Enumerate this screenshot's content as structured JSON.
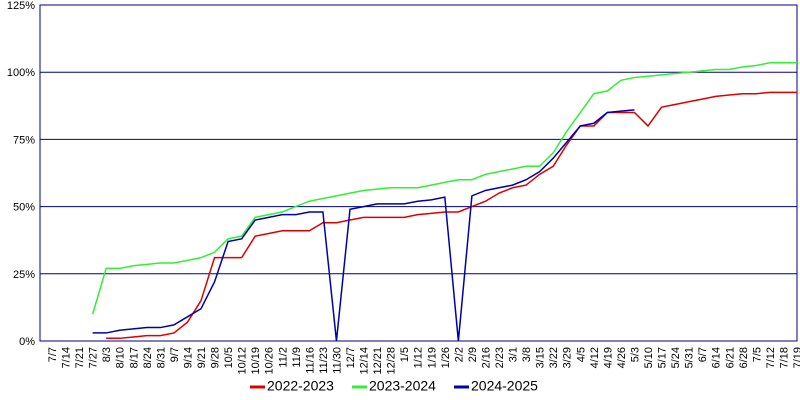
{
  "chart_data": {
    "type": "line",
    "categories": [
      "7/7",
      "7/14",
      "7/21",
      "7/27",
      "8/3",
      "8/10",
      "8/17",
      "8/24",
      "8/31",
      "9/7",
      "9/14",
      "9/21",
      "9/28",
      "10/5",
      "10/12",
      "10/19",
      "10/26",
      "11/2",
      "11/9",
      "11/16",
      "11/23",
      "11/30",
      "12/7",
      "12/14",
      "12/21",
      "12/28",
      "1/5",
      "1/12",
      "1/19",
      "1/26",
      "2/2",
      "2/9",
      "2/16",
      "2/23",
      "3/1",
      "3/8",
      "3/15",
      "3/22",
      "3/29",
      "4/5",
      "4/12",
      "4/19",
      "4/26",
      "5/3",
      "5/10",
      "5/17",
      "5/24",
      "5/31",
      "6/7",
      "6/14",
      "6/21",
      "6/28",
      "7/5",
      "7/12",
      "7/18",
      "7/19"
    ],
    "series": [
      {
        "name": "2022-2023",
        "color": "#dd0000",
        "values": [
          null,
          null,
          null,
          null,
          1,
          1,
          1.5,
          2,
          2,
          3,
          7,
          15,
          31,
          31,
          31,
          39,
          40,
          41,
          41,
          41,
          44,
          44,
          45,
          46,
          46,
          46,
          46,
          47,
          47.5,
          48,
          48,
          50,
          52,
          55,
          57,
          58,
          62,
          65,
          73,
          80,
          80,
          85,
          85,
          85,
          80,
          87,
          88,
          89,
          90,
          91,
          91.5,
          92,
          92,
          92.5,
          92.5,
          92.5
        ]
      },
      {
        "name": "2023-2024",
        "color": "#33ee33",
        "values": [
          null,
          null,
          null,
          10,
          27,
          27,
          28,
          28.5,
          29,
          29,
          30,
          31,
          33,
          38,
          39,
          46,
          47,
          48,
          50,
          52,
          53,
          54,
          55,
          56,
          56.5,
          57,
          57,
          57,
          58,
          59,
          60,
          60,
          62,
          63,
          64,
          65,
          65,
          70,
          78,
          85,
          92,
          93,
          97,
          98,
          98.5,
          99,
          99.5,
          100,
          100.5,
          101,
          101,
          102,
          102.5,
          103.5,
          103.5,
          103.5
        ]
      },
      {
        "name": "2024-2025",
        "color": "#0000aa",
        "values": [
          null,
          null,
          null,
          3,
          3,
          4,
          4.5,
          5,
          5,
          6,
          9,
          12,
          22,
          37,
          38,
          45,
          46,
          47,
          47,
          48,
          48,
          0,
          49,
          50,
          51,
          51,
          51,
          52,
          52.5,
          53.5,
          0,
          54,
          56,
          57,
          58,
          60,
          63,
          68,
          74,
          80,
          81,
          85,
          85.5,
          86,
          null,
          null,
          null,
          null,
          null,
          null,
          null,
          null,
          null,
          null,
          null,
          null
        ]
      }
    ],
    "ylim": [
      0,
      125
    ],
    "yticks": [
      {
        "value": 0,
        "label": "0%"
      },
      {
        "value": 25,
        "label": "25%"
      },
      {
        "value": 50,
        "label": "50%"
      },
      {
        "value": 75,
        "label": "75%"
      },
      {
        "value": 100,
        "label": "100%"
      },
      {
        "value": 125,
        "label": "125%"
      }
    ],
    "grid": true
  }
}
